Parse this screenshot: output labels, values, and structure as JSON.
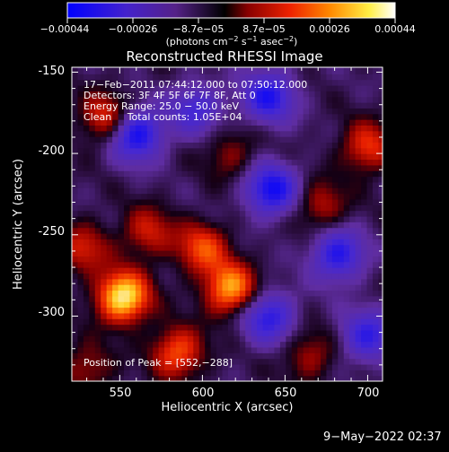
{
  "colorbar": {
    "ticks": [
      "−0.00044",
      "−0.00026",
      "−8.7e−05",
      "8.7e−05",
      "0.00026",
      "0.00044"
    ],
    "units_main": "(photons cm",
    "units_exp1": "−2",
    "units_mid": " s",
    "units_exp2": "−1",
    "units_tail": " asec",
    "units_exp3": "−2",
    "units_close": ")"
  },
  "chart_data": {
    "type": "heatmap",
    "title": "Reconstructed RHESSI Image",
    "xlabel": "Heliocentric X (arcsec)",
    "ylabel": "Heliocentric Y (arcsec)",
    "xlim": [
      521,
      709
    ],
    "ylim": [
      -340,
      -147
    ],
    "x_ticks": [
      550,
      600,
      650,
      700
    ],
    "y_ticks": [
      -150,
      -200,
      -250,
      -300
    ],
    "value_range": [
      -0.00044,
      0.00044
    ],
    "colormap": [
      "#0000ff",
      "#5522aa",
      "#000000",
      "#aa0000",
      "#ff6600",
      "#ffff66",
      "#ffffff"
    ],
    "hot_spots": [
      {
        "x": 552,
        "y": -288,
        "value": 0.00044
      },
      {
        "x": 617,
        "y": -283,
        "value": 0.00034
      },
      {
        "x": 585,
        "y": -322,
        "value": 0.00026
      },
      {
        "x": 600,
        "y": -258,
        "value": 0.00024
      },
      {
        "x": 542,
        "y": -178,
        "value": 0.00022
      },
      {
        "x": 700,
        "y": -196,
        "value": 0.00022
      },
      {
        "x": 528,
        "y": -258,
        "value": 0.00018
      },
      {
        "x": 567,
        "y": -248,
        "value": 0.00018
      },
      {
        "x": 672,
        "y": -232,
        "value": 0.00016
      },
      {
        "x": 665,
        "y": -324,
        "value": 0.00014
      },
      {
        "x": 617,
        "y": -200,
        "value": 0.00012
      },
      {
        "x": 530,
        "y": -332,
        "value": 0.00014
      }
    ],
    "cold_spots": [
      {
        "x": 560,
        "y": -188,
        "value": -0.00035
      },
      {
        "x": 640,
        "y": -165,
        "value": -0.0003
      },
      {
        "x": 642,
        "y": -222,
        "value": -0.00034
      },
      {
        "x": 682,
        "y": -262,
        "value": -0.0003
      },
      {
        "x": 640,
        "y": -300,
        "value": -0.00028
      },
      {
        "x": 700,
        "y": -312,
        "value": -0.00026
      },
      {
        "x": 596,
        "y": -172,
        "value": -0.00022
      }
    ],
    "annotations": {
      "line1": "17−Feb−2011 07:44:12.000 to 07:50:12.000",
      "line2": "Detectors: 3F 4F 5F 6F 7F 8F, Att 0",
      "line3": "Energy Range: 25.0 − 50.0 keV",
      "line4": "Clean     Total counts: 1.05E+04",
      "peak": "Position of Peak = [552,−288]"
    }
  },
  "footer": {
    "date": "9−May−2022 02:37"
  }
}
